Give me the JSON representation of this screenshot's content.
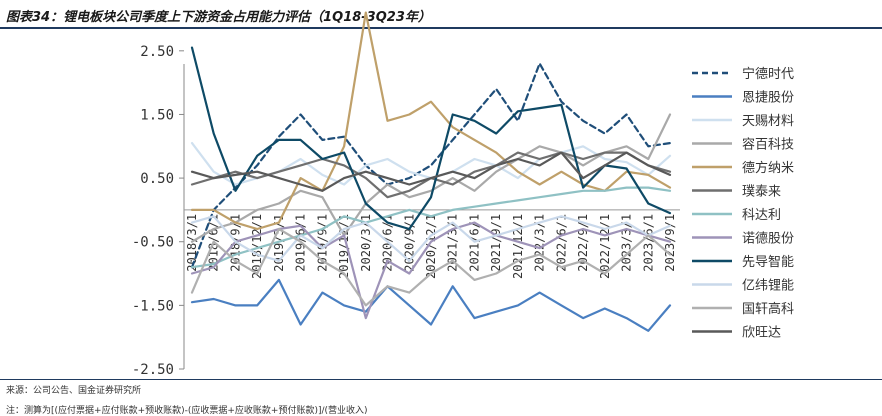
{
  "title": "图表34：锂电板块公司季度上下游资金占用能力评估（1Q18-3Q23年）",
  "source": "来源：公司公告、国金证券研究所",
  "note": "注：测算为[(应付票据+应付账款+预收账款)-(应收票据+应收账款+预付账款)]/(营业收入)",
  "chart_data": {
    "type": "line",
    "title": "图表34：锂电板块公司季度上下游资金占用能力评估（1Q18-3Q23年）",
    "xlabel": "",
    "ylabel": "",
    "ylim": [
      -2.5,
      3.0
    ],
    "yticks": [
      -2.5,
      -1.5,
      -0.5,
      0.5,
      1.5,
      2.5
    ],
    "ytick_labels": [
      "-2.50",
      "-1.50",
      "-0.50",
      "0.50",
      "1.50",
      "2.50"
    ],
    "grid": false,
    "legend_position": "right",
    "x": [
      "2018/3/1",
      "2018/6/1",
      "2018/9/1",
      "2018/12/1",
      "2019/3/1",
      "2019/6/1",
      "2019/9/1",
      "2019/12/1",
      "2020/3/1",
      "2020/6/1",
      "2020/9/1",
      "2020/12/1",
      "2021/3/1",
      "2021/6/1",
      "2021/9/1",
      "2021/12/1",
      "2022/3/1",
      "2022/6/1",
      "2022/9/1",
      "2022/12/1",
      "2023/3/1",
      "2023/6/1",
      "2023/9/1"
    ],
    "x_tick_labels": [
      "2018/3/1",
      "2018/6/1",
      "2018/9/1",
      "2018/12/1",
      "2019/3/1",
      "2019/6/1",
      "2019/9/1",
      "2019/12/1",
      "2020/3/1",
      "2020/6/1",
      "2020/9/1",
      "2020/12/1",
      "2021/3/1",
      "2021/6/1",
      "2021/9/1",
      "2021/12/1",
      "2022/3/1",
      "2022/6/1",
      "2022/9/1",
      "2022/12/1",
      "2023/3/1",
      "2023/6/1",
      "2023/9/1"
    ],
    "series": [
      {
        "name": "宁德时代",
        "color": "#1f4e79",
        "dash": true,
        "values": [
          -0.9,
          0.0,
          0.35,
          0.7,
          1.15,
          1.5,
          1.1,
          1.15,
          0.7,
          0.4,
          0.5,
          0.7,
          1.1,
          1.5,
          1.9,
          1.4,
          2.3,
          1.7,
          1.4,
          1.2,
          1.5,
          1.0,
          1.05
        ]
      },
      {
        "name": "恩捷股份",
        "color": "#4a7fc1",
        "dash": false,
        "values": [
          -1.45,
          -1.4,
          -1.5,
          -1.5,
          -1.1,
          -1.8,
          -1.3,
          -1.5,
          -1.6,
          -1.2,
          -1.5,
          -1.8,
          -1.2,
          -1.7,
          -1.6,
          -1.5,
          -1.3,
          -1.5,
          -1.7,
          -1.55,
          -1.7,
          -1.9,
          -1.5
        ]
      },
      {
        "name": "天赐材料",
        "color": "#cfe0ef",
        "dash": false,
        "values": [
          1.05,
          0.6,
          0.4,
          0.5,
          0.6,
          0.8,
          0.55,
          0.4,
          0.7,
          0.8,
          0.6,
          0.5,
          0.6,
          0.8,
          0.7,
          0.5,
          0.8,
          0.9,
          1.0,
          0.8,
          0.75,
          0.55,
          0.85
        ]
      },
      {
        "name": "容百科技",
        "color": "#a9a9a9",
        "dash": false,
        "values": [
          -0.5,
          -0.3,
          -0.2,
          0.0,
          0.1,
          0.3,
          0.2,
          -0.4,
          0.1,
          0.4,
          0.2,
          0.3,
          0.5,
          0.3,
          0.6,
          0.8,
          1.0,
          0.9,
          0.7,
          0.9,
          1.0,
          0.8,
          1.5
        ]
      },
      {
        "name": "德方纳米",
        "color": "#bfa06a",
        "dash": false,
        "values": [
          0.0,
          0.0,
          -0.2,
          -0.3,
          -0.2,
          0.5,
          0.3,
          1.0,
          3.1,
          1.4,
          1.5,
          1.7,
          1.3,
          1.1,
          0.9,
          0.6,
          0.4,
          0.6,
          0.4,
          0.3,
          0.6,
          0.55,
          0.35
        ]
      },
      {
        "name": "璞泰来",
        "color": "#6f6f6f",
        "dash": false,
        "values": [
          0.4,
          0.5,
          0.6,
          0.5,
          0.6,
          0.7,
          0.8,
          0.7,
          0.5,
          0.2,
          0.3,
          0.5,
          0.4,
          0.6,
          0.7,
          0.9,
          0.8,
          0.9,
          0.8,
          0.9,
          0.9,
          0.7,
          0.6
        ]
      },
      {
        "name": "科达利",
        "color": "#8fc1c4",
        "dash": false,
        "values": [
          -0.9,
          -0.85,
          -0.7,
          -0.6,
          -0.5,
          -0.4,
          -0.3,
          -0.1,
          -0.2,
          -0.1,
          0.0,
          -0.1,
          0.0,
          0.05,
          0.1,
          0.15,
          0.2,
          0.25,
          0.3,
          0.3,
          0.35,
          0.35,
          0.3
        ]
      },
      {
        "name": "诺德股份",
        "color": "#9e93b8",
        "dash": false,
        "values": [
          -1.0,
          -0.9,
          -0.5,
          -0.4,
          -0.3,
          -0.25,
          -0.6,
          -0.4,
          -1.7,
          -0.8,
          -1.0,
          -0.5,
          -0.3,
          -0.2,
          -0.4,
          -0.5,
          -0.6,
          -0.4,
          -0.3,
          -0.4,
          -0.3,
          -0.4,
          -0.5
        ]
      },
      {
        "name": "先导智能",
        "color": "#0e4a66",
        "dash": false,
        "values": [
          2.55,
          1.2,
          0.3,
          0.85,
          1.1,
          1.1,
          0.8,
          0.9,
          0.1,
          -0.2,
          -0.3,
          0.2,
          1.5,
          1.4,
          1.2,
          1.55,
          1.6,
          1.65,
          0.35,
          0.7,
          0.65,
          0.1,
          -0.05
        ]
      },
      {
        "name": "亿纬锂能",
        "color": "#c9d8ea",
        "dash": false,
        "values": [
          -0.2,
          -0.1,
          -0.5,
          -0.7,
          -0.8,
          -0.4,
          -0.6,
          -0.3,
          -0.2,
          -0.5,
          -0.8,
          -0.4,
          -0.2,
          -0.5,
          -0.4,
          -0.3,
          -0.2,
          -0.1,
          -0.2,
          -0.3,
          -0.2,
          -0.4,
          -0.25
        ]
      },
      {
        "name": "国轩高科",
        "color": "#b0b0b0",
        "dash": false,
        "values": [
          -1.3,
          -0.5,
          -0.8,
          -1.0,
          -0.3,
          -0.5,
          -0.8,
          -1.0,
          -1.5,
          -1.2,
          -1.3,
          -1.0,
          -0.8,
          -1.1,
          -1.0,
          -0.8,
          -0.7,
          -0.9,
          -0.8,
          -1.0,
          -0.7,
          -0.4,
          -0.7
        ]
      },
      {
        "name": "欣旺达",
        "color": "#595959",
        "dash": false,
        "values": [
          0.6,
          0.5,
          0.55,
          0.6,
          0.5,
          0.4,
          0.3,
          0.5,
          0.6,
          0.5,
          0.4,
          0.5,
          0.6,
          0.5,
          0.7,
          0.8,
          0.7,
          0.9,
          0.5,
          0.7,
          0.9,
          0.7,
          0.55
        ]
      }
    ]
  }
}
